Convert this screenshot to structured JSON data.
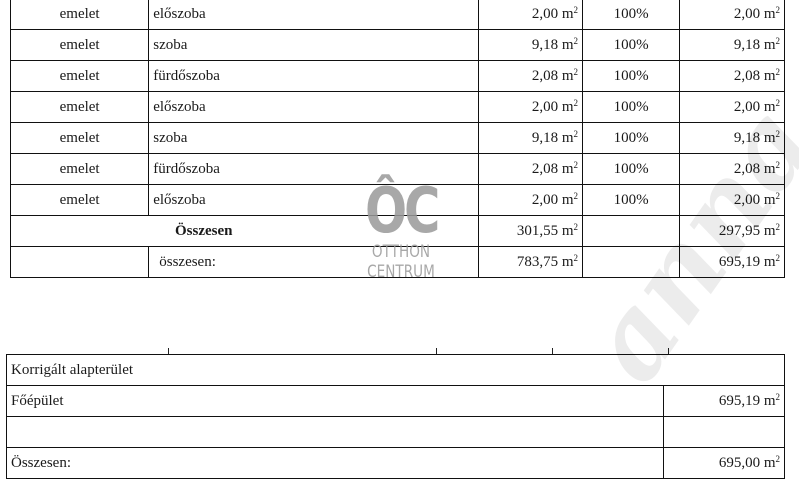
{
  "rooms_table": {
    "rows": [
      {
        "level": "emelet",
        "room": "előszoba",
        "area": "2,00",
        "ratio": "100%",
        "counted": "2,00"
      },
      {
        "level": "emelet",
        "room": "szoba",
        "area": "9,18",
        "ratio": "100%",
        "counted": "9,18"
      },
      {
        "level": "emelet",
        "room": "fürdőszoba",
        "area": "2,08",
        "ratio": "100%",
        "counted": "2,08"
      },
      {
        "level": "emelet",
        "room": "előszoba",
        "area": "2,00",
        "ratio": "100%",
        "counted": "2,00"
      },
      {
        "level": "emelet",
        "room": "szoba",
        "area": "9,18",
        "ratio": "100%",
        "counted": "9,18"
      },
      {
        "level": "emelet",
        "room": "fürdőszoba",
        "area": "2,08",
        "ratio": "100%",
        "counted": "2,08"
      },
      {
        "level": "emelet",
        "room": "előszoba",
        "area": "2,00",
        "ratio": "100%",
        "counted": "2,00"
      }
    ],
    "unit": "m",
    "unit_exp": "2",
    "subtotal": {
      "label": "Összesen",
      "area": "301,55",
      "counted": "297,95"
    },
    "total": {
      "label": "összesen:",
      "area": "783,75",
      "counted": "695,19"
    }
  },
  "corrected_table": {
    "title": "Korrigált alapterület",
    "main_building": {
      "label": "Főépület",
      "value": "695,19"
    },
    "total": {
      "label": "Összesen:",
      "value": "695,00"
    }
  },
  "watermark": {
    "logo_mark": "ÔC",
    "logo_line1": "OTTHON",
    "logo_line2": "CENTRUM",
    "script_text": "anna"
  }
}
